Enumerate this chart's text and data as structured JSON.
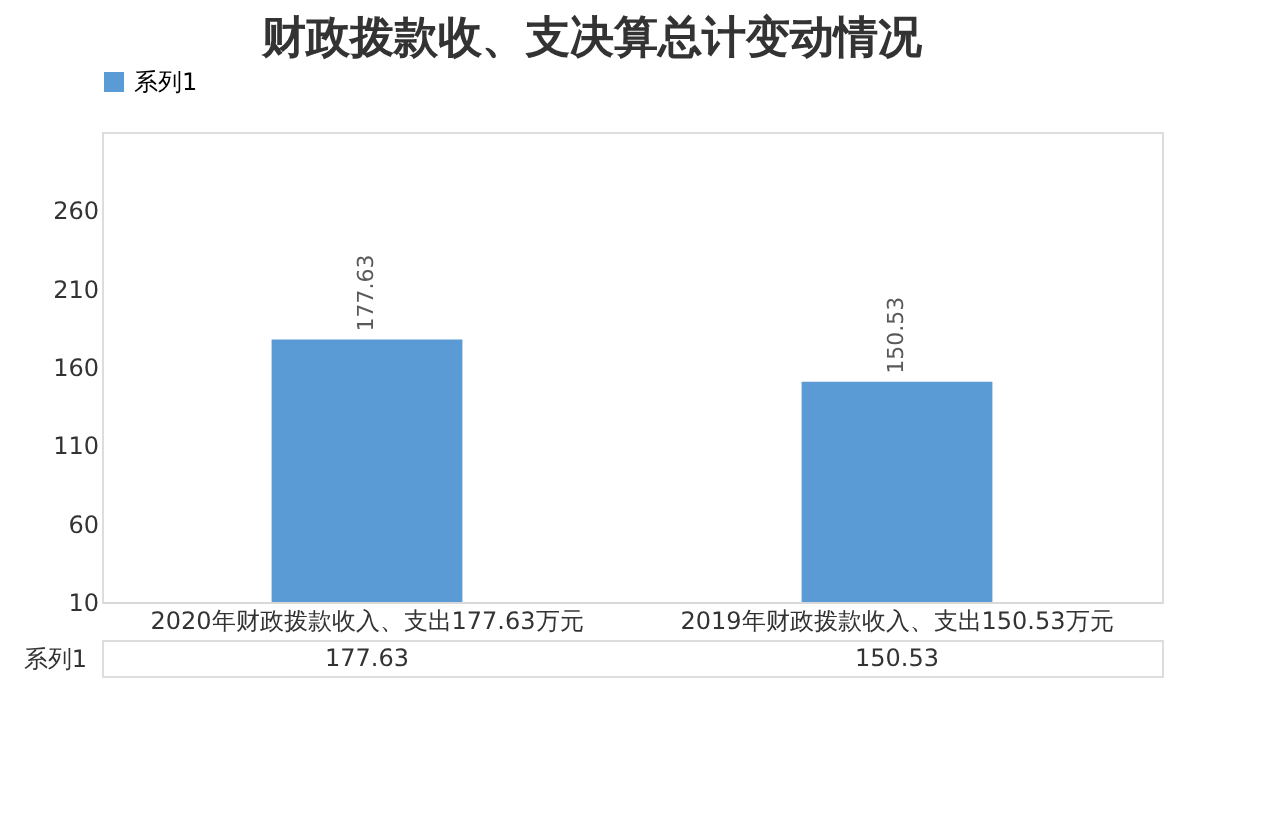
{
  "chart_data": {
    "type": "bar",
    "title": "财政拨款收、支决算总计变动情况",
    "categories": [
      "2020年财政拨款收入、支出177.63万元",
      "2019年财政拨款收入、支出150.53万元"
    ],
    "series": [
      {
        "name": "系列1",
        "color": "#5b9bd5",
        "values": [
          177.63,
          150.53
        ],
        "value_labels": [
          "177.63",
          "150.53"
        ]
      }
    ],
    "ylim": [
      10,
      310
    ],
    "yticks": [
      10,
      60,
      110,
      160,
      210,
      260
    ],
    "legend": "top",
    "annotations": [
      "177.63",
      "150.53"
    ]
  }
}
